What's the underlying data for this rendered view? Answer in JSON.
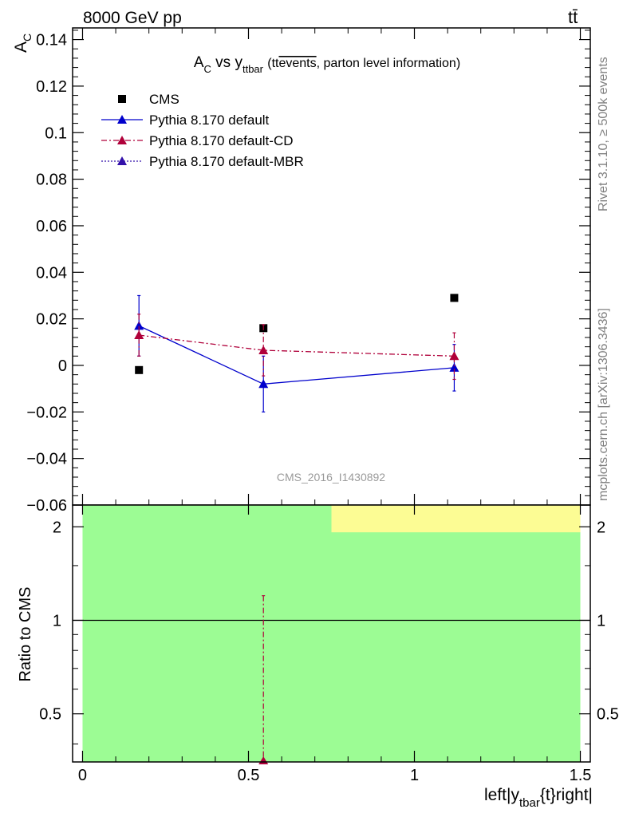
{
  "header": {
    "left_label": "8000 GeV pp",
    "right_label": "tt̄"
  },
  "side_labels": {
    "rivet": "Rivet 3.1.10, ≥ 500k events",
    "mcplots": "mcplots.cern.ch [arXiv:1306.3436]"
  },
  "watermark": "CMS_2016_I1430892",
  "colors": {
    "data": "#000000",
    "default": "#0000cc",
    "cd": "#b0003a",
    "mbr": "#3311aa",
    "band_green": "#9cfc94",
    "band_yellow": "#fcfc94"
  },
  "chart_data": [
    {
      "type": "scatter",
      "title_main": "A",
      "title_main_sub": "C",
      "title_vs": " vs y",
      "title_vs_sub": "ttbar",
      "title_tail_pre": "(tt",
      "title_overline": "events",
      "title_tail_post": ", parton level information)",
      "ylabel": "A",
      "ylabel_sub": "C",
      "ylim": [
        -0.06,
        0.145
      ],
      "xlim": [
        -0.03,
        1.53
      ],
      "yticks": [
        -0.06,
        -0.04,
        -0.02,
        0,
        0.02,
        0.04,
        0.06,
        0.08,
        0.1,
        0.12,
        0.14
      ],
      "ytick_labels": [
        "−0.06",
        "−0.04",
        "−0.02",
        "0",
        "0.02",
        "0.04",
        "0.06",
        "0.08",
        "0.1",
        "0.12",
        "0.14"
      ],
      "legend_position": "top-left",
      "series": [
        {
          "name": "CMS",
          "style": "square",
          "color": "#000000",
          "x": [
            0.17,
            0.545,
            1.12
          ],
          "y": [
            -0.002,
            0.016,
            0.029
          ],
          "err": [
            0,
            0,
            0
          ]
        },
        {
          "name": "Pythia 8.170 default",
          "style": "solid",
          "color": "#0000cc",
          "x": [
            0.17,
            0.545,
            1.12
          ],
          "y": [
            0.017,
            -0.008,
            -0.001
          ],
          "err": [
            0.013,
            0.012,
            0.01
          ]
        },
        {
          "name": "Pythia 8.170 default-CD",
          "style": "dashdot",
          "color": "#b0003a",
          "x": [
            0.17,
            0.545,
            1.12
          ],
          "y": [
            0.013,
            0.0065,
            0.004
          ],
          "err": [
            0.009,
            0.011,
            0.01
          ]
        },
        {
          "name": "Pythia 8.170 default-MBR",
          "style": "dotted",
          "color": "#3311aa",
          "x": [],
          "y": [],
          "err": []
        }
      ]
    },
    {
      "type": "line",
      "ylabel": "Ratio to CMS",
      "xlabel": "left|y",
      "xlabel_sub": "tbar",
      "xlabel_tail": "{t}right|",
      "log_y": true,
      "ylim": [
        0.35,
        2.35
      ],
      "xlim": [
        -0.03,
        1.53
      ],
      "yticks": [
        0.5,
        1,
        2
      ],
      "ytick_labels": [
        "0.5",
        "1",
        "2"
      ],
      "xticks": [
        0,
        0.5,
        1,
        1.5
      ],
      "xtick_labels": [
        "0",
        "0.5",
        "1",
        "1.5"
      ],
      "reference": 1,
      "bands": [
        {
          "x0": 0,
          "x1": 1.5,
          "y0": 0.35,
          "y1": 2.35,
          "color": "#9cfc94"
        },
        {
          "x0": 0.75,
          "x1": 1.5,
          "y0": 1.92,
          "y1": 2.35,
          "color": "#fcfc94"
        }
      ],
      "series": [
        {
          "name": "Pythia 8.170 default-CD",
          "style": "dashdot",
          "color": "#b0003a",
          "x": [
            0.545
          ],
          "y_low": [
            0.35
          ],
          "y_high": [
            1.2
          ],
          "marker_y": [
            0.35
          ]
        }
      ]
    }
  ]
}
